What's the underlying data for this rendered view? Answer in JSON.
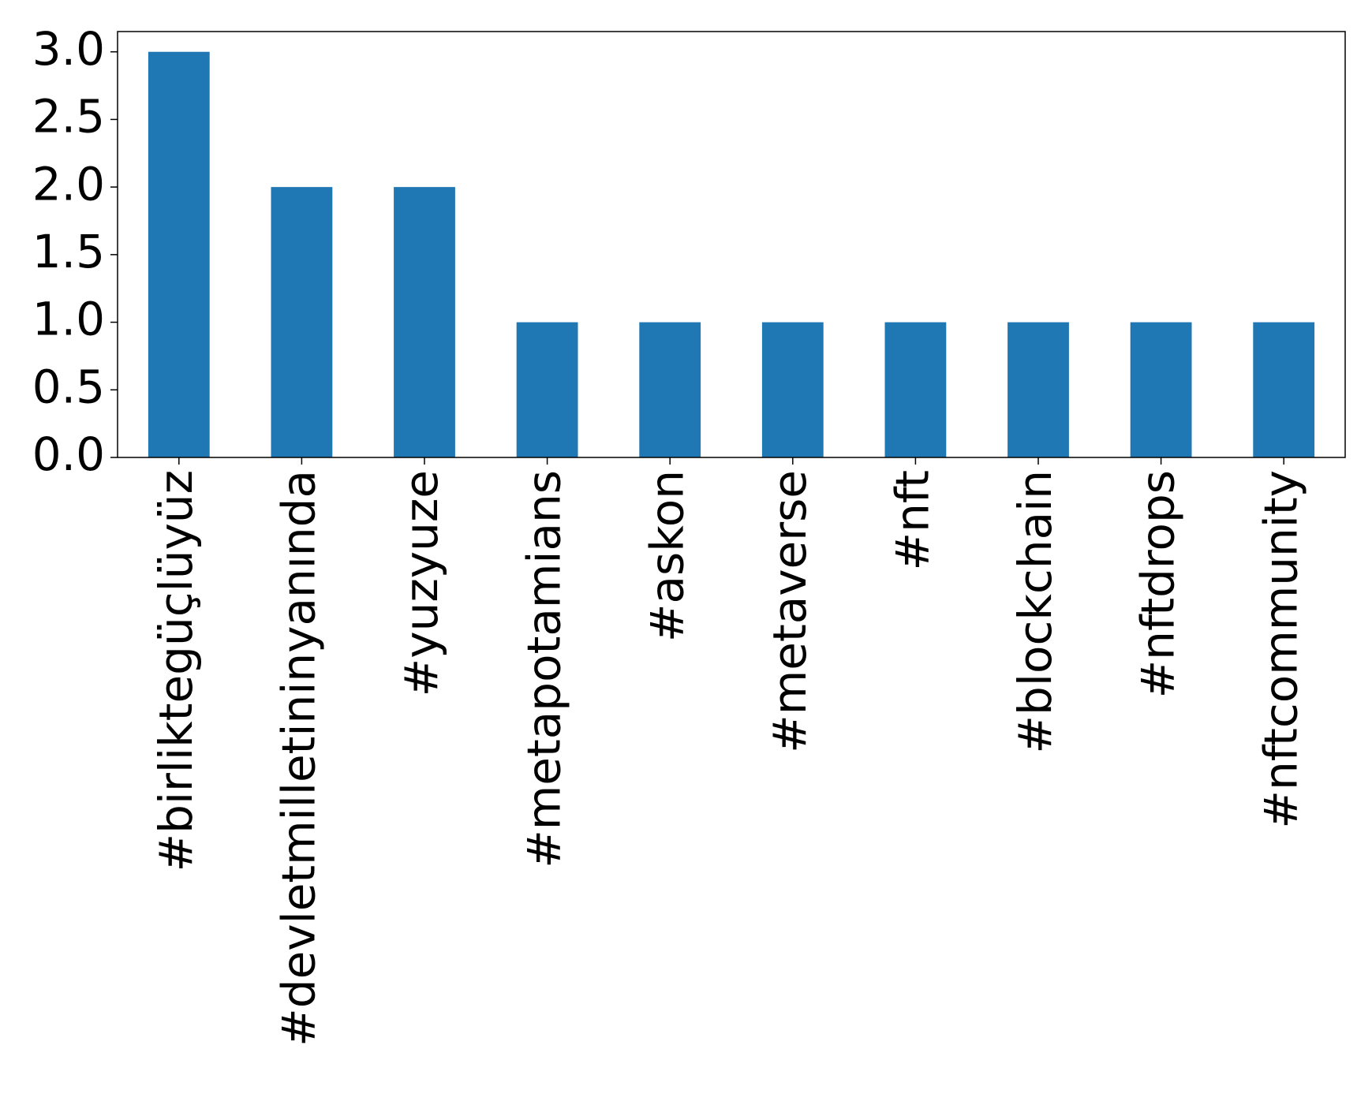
{
  "chart_data": {
    "type": "bar",
    "categories": [
      "#birliktegüçlüyüz",
      "#devletmilletininyanında",
      "#yuzyuze",
      "#metapotamians",
      "#askon",
      "#metaverse",
      "#nft",
      "#blockchain",
      "#nftdrops",
      "#nftcommunity"
    ],
    "values": [
      3,
      2,
      2,
      1,
      1,
      1,
      1,
      1,
      1,
      1
    ],
    "color": "#1f77b4",
    "ylim": [
      0,
      3.15
    ],
    "yticks": [
      {
        "value": 0,
        "label": "0.0"
      },
      0.5,
      {
        "value": 1,
        "label": "1.0"
      },
      1.5,
      {
        "value": 2,
        "label": "2.0"
      },
      2.5,
      {
        "value": 3,
        "label": "3.0"
      }
    ],
    "grid": false
  }
}
